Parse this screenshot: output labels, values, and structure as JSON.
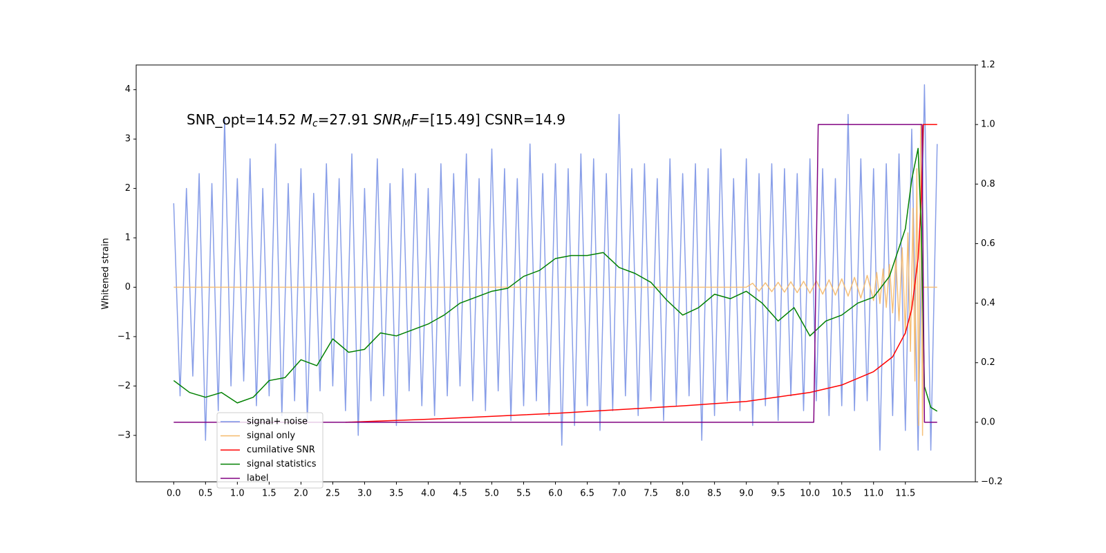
{
  "chart_data": {
    "type": "line",
    "ylabel": "Whitened strain",
    "annotation": [
      {
        "text": "SNR_opt=14.52 "
      },
      {
        "text": "M",
        "italic": true
      },
      {
        "text": "c",
        "italic": true,
        "sub": true
      },
      {
        "text": "=27.91  "
      },
      {
        "text": "SNR",
        "italic": true
      },
      {
        "text": "M",
        "italic": true,
        "sub": true
      },
      {
        "text": "F",
        "italic": true
      },
      {
        "text": "=[15.49] CSNR=14.9"
      }
    ],
    "xlim": [
      -0.59,
      12.6
    ],
    "xticks": [
      {
        "value": 0,
        "label": "0.0"
      },
      0.5,
      {
        "value": 1,
        "label": "1.0"
      },
      1.5,
      {
        "value": 2,
        "label": "2.0"
      },
      2.5,
      {
        "value": 3,
        "label": "3.0"
      },
      3.5,
      {
        "value": 4,
        "label": "4.0"
      },
      4.5,
      {
        "value": 5,
        "label": "5.0"
      },
      5.5,
      {
        "value": 6,
        "label": "6.0"
      },
      6.5,
      {
        "value": 7,
        "label": "7.0"
      },
      7.5,
      {
        "value": 8,
        "label": "8.0"
      },
      8.5,
      {
        "value": 9,
        "label": "9.0"
      },
      9.5,
      {
        "value": 10,
        "label": "10.0"
      },
      10.5,
      {
        "value": 11,
        "label": "11.0"
      },
      11.5
    ],
    "ylim": [
      -3.94,
      4.5
    ],
    "yticks": [
      {
        "value": -3,
        "label": "−3"
      },
      {
        "value": -2,
        "label": "−2"
      },
      {
        "value": -1,
        "label": "−1"
      },
      0,
      1,
      2,
      3,
      4
    ],
    "y2lim": [
      -0.2,
      1.2
    ],
    "y2ticks": [
      {
        "value": -0.2,
        "label": "−0.2"
      },
      {
        "value": 0,
        "label": "0.0"
      },
      0.2,
      0.4,
      0.6,
      0.8,
      {
        "value": 1,
        "label": "1.0"
      },
      1.2
    ],
    "legend": "lower left",
    "series": [
      {
        "name": "signal+ noise",
        "color": "#7b93e6",
        "x": [
          0,
          0.1,
          0.2,
          0.3,
          0.4,
          0.5,
          0.6,
          0.7,
          0.8,
          0.9,
          1,
          1.1,
          1.2,
          1.3,
          1.4,
          1.5,
          1.6,
          1.7,
          1.8,
          1.9,
          2,
          2.1,
          2.2,
          2.3,
          2.4,
          2.5,
          2.6,
          2.7,
          2.8,
          2.9,
          3,
          3.1,
          3.2,
          3.3,
          3.4,
          3.5,
          3.6,
          3.7,
          3.8,
          3.9,
          4,
          4.1,
          4.2,
          4.3,
          4.4,
          4.5,
          4.6,
          4.7,
          4.8,
          4.9,
          5,
          5.1,
          5.2,
          5.3,
          5.4,
          5.5,
          5.6,
          5.7,
          5.8,
          5.9,
          6,
          6.1,
          6.2,
          6.3,
          6.4,
          6.5,
          6.6,
          6.7,
          6.8,
          6.9,
          7,
          7.1,
          7.2,
          7.3,
          7.4,
          7.5,
          7.6,
          7.7,
          7.8,
          7.9,
          8,
          8.1,
          8.2,
          8.3,
          8.4,
          8.5,
          8.6,
          8.7,
          8.8,
          8.9,
          9,
          9.1,
          9.2,
          9.3,
          9.4,
          9.5,
          9.6,
          9.7,
          9.8,
          9.9,
          10,
          10.1,
          10.2,
          10.3,
          10.4,
          10.5,
          10.6,
          10.7,
          10.8,
          10.9,
          11,
          11.1,
          11.2,
          11.3,
          11.4,
          11.5,
          11.6,
          11.7,
          11.8,
          11.9,
          12
        ],
        "values": [
          1.7,
          -2.2,
          2.0,
          -1.8,
          2.3,
          -3.1,
          2.1,
          -2.5,
          3.4,
          -2.0,
          2.2,
          -1.9,
          2.6,
          -2.4,
          2.0,
          -2.2,
          2.9,
          -2.6,
          2.1,
          -2.3,
          2.4,
          -2.7,
          1.9,
          -2.1,
          2.5,
          -2.0,
          2.2,
          -2.5,
          2.7,
          -3.0,
          2.0,
          -2.3,
          2.6,
          -2.2,
          2.1,
          -2.8,
          2.4,
          -2.1,
          2.3,
          -2.4,
          2.0,
          -2.6,
          2.5,
          -2.2,
          2.3,
          -2.0,
          2.7,
          -2.3,
          2.2,
          -2.5,
          2.8,
          -2.1,
          2.4,
          -2.7,
          2.2,
          -2.4,
          2.9,
          -2.3,
          2.3,
          -2.6,
          2.5,
          -3.2,
          2.4,
          -2.8,
          2.7,
          -2.4,
          2.6,
          -2.9,
          2.3,
          -2.5,
          3.5,
          -2.2,
          2.4,
          -2.6,
          2.5,
          -2.3,
          2.2,
          -2.7,
          2.6,
          -2.4,
          2.3,
          -2.2,
          2.5,
          -3.1,
          2.4,
          -2.6,
          2.8,
          -2.3,
          2.2,
          -2.5,
          2.6,
          -2.8,
          2.3,
          -2.4,
          2.5,
          -2.7,
          2.4,
          -2.2,
          2.3,
          -2.5,
          2.6,
          -2.3,
          2.4,
          -2.6,
          2.2,
          -2.4,
          3.5,
          -2.5,
          2.6,
          -2.3,
          2.4,
          -3.3,
          2.5,
          -2.6,
          2.7,
          -2.9,
          3.2,
          -3.3,
          4.1,
          -3.3,
          2.9
        ]
      },
      {
        "name": "signal only",
        "color": "#f5b96a",
        "x": [
          0,
          9.0,
          9.1,
          9.2,
          9.3,
          9.4,
          9.5,
          9.6,
          9.7,
          9.8,
          9.9,
          10.0,
          10.1,
          10.2,
          10.3,
          10.4,
          10.5,
          10.6,
          10.7,
          10.8,
          10.9,
          11.0,
          11.05,
          11.1,
          11.15,
          11.2,
          11.25,
          11.3,
          11.35,
          11.4,
          11.45,
          11.5,
          11.54,
          11.58,
          11.62,
          11.65,
          11.68,
          11.71,
          11.74,
          11.77,
          11.78,
          12.0
        ],
        "values": [
          0,
          0,
          0.08,
          -0.08,
          0.09,
          -0.09,
          0.1,
          -0.1,
          0.11,
          -0.11,
          0.12,
          -0.12,
          0.13,
          -0.14,
          0.15,
          -0.16,
          0.17,
          -0.18,
          0.2,
          -0.22,
          0.24,
          -0.27,
          0.3,
          -0.33,
          0.37,
          -0.41,
          0.46,
          -0.52,
          0.6,
          -0.68,
          0.8,
          -0.95,
          1.1,
          -1.3,
          1.6,
          -1.9,
          2.4,
          -2.8,
          3.3,
          -3.0,
          0,
          0
        ]
      },
      {
        "name": "cumilative SNR",
        "color": "#ff0000",
        "axis": "y2",
        "x": [
          2.7,
          4,
          6,
          8,
          9,
          10,
          10.5,
          11,
          11.3,
          11.5,
          11.6,
          11.7,
          11.75,
          11.78,
          12
        ],
        "values": [
          0,
          0.01,
          0.03,
          0.055,
          0.07,
          0.1,
          0.125,
          0.17,
          0.22,
          0.3,
          0.38,
          0.55,
          0.75,
          1.0,
          1.0
        ]
      },
      {
        "name": "signal statistics",
        "color": "#008000",
        "axis": "y2",
        "x": [
          0,
          0.25,
          0.5,
          0.75,
          1,
          1.25,
          1.5,
          1.75,
          2,
          2.25,
          2.5,
          2.75,
          3,
          3.25,
          3.5,
          3.75,
          4,
          4.25,
          4.5,
          4.75,
          5,
          5.25,
          5.5,
          5.75,
          6,
          6.25,
          6.5,
          6.75,
          7,
          7.25,
          7.5,
          7.75,
          8,
          8.25,
          8.5,
          8.75,
          9,
          9.25,
          9.5,
          9.75,
          10,
          10.25,
          10.5,
          10.75,
          11,
          11.25,
          11.5,
          11.6,
          11.7,
          11.75,
          11.8,
          11.9,
          12
        ],
        "values": [
          0.14,
          0.1,
          0.084,
          0.1,
          0.065,
          0.084,
          0.14,
          0.15,
          0.21,
          0.19,
          0.28,
          0.235,
          0.245,
          0.3,
          0.29,
          0.31,
          0.33,
          0.36,
          0.4,
          0.42,
          0.44,
          0.45,
          0.49,
          0.51,
          0.55,
          0.56,
          0.56,
          0.57,
          0.52,
          0.5,
          0.47,
          0.41,
          0.36,
          0.385,
          0.43,
          0.415,
          0.44,
          0.4,
          0.34,
          0.385,
          0.29,
          0.34,
          0.36,
          0.4,
          0.42,
          0.49,
          0.65,
          0.815,
          0.92,
          0.65,
          0.12,
          0.05,
          0.037
        ]
      },
      {
        "name": "label",
        "color": "#800080",
        "axis": "y2",
        "x": [
          0,
          10.06,
          10.13,
          11.76,
          11.8,
          12
        ],
        "values": [
          0,
          0,
          1,
          1,
          0,
          0
        ]
      }
    ]
  }
}
